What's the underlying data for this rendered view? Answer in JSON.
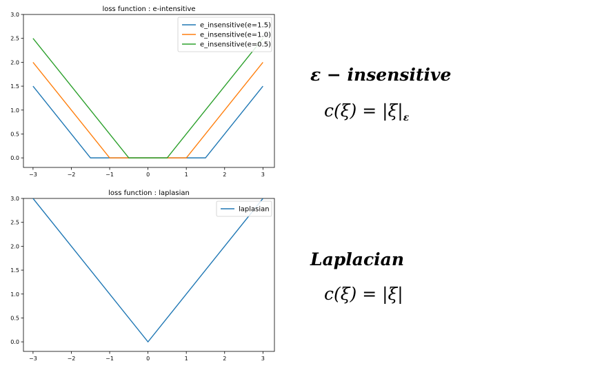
{
  "colors": {
    "c0": "#1f77b4",
    "c1": "#ff7f0e",
    "c2": "#2ca02c"
  },
  "chart_data": [
    {
      "type": "line",
      "title": "loss function : e-intensitive",
      "xlim": [
        -3.25,
        3.3
      ],
      "ylim": [
        -0.2,
        3.0
      ],
      "xticks": [
        "−3",
        "−2",
        "−1",
        "0",
        "1",
        "2",
        "3"
      ],
      "yticks": [
        "0.0",
        "0.5",
        "1.0",
        "1.5",
        "2.0",
        "2.5",
        "3.0"
      ],
      "legend": "top-right",
      "series": [
        {
          "name": "e_insensitive(e=1.5)",
          "color": "c0",
          "x": [
            -3,
            -1.5,
            1.5,
            3
          ],
          "y": [
            1.5,
            0,
            0,
            1.5
          ]
        },
        {
          "name": "e_insensitive(e=1.0)",
          "color": "c1",
          "x": [
            -3,
            -1.0,
            1.0,
            3
          ],
          "y": [
            2.0,
            0,
            0,
            2.0
          ]
        },
        {
          "name": "e_insensitive(e=0.5)",
          "color": "c2",
          "x": [
            -3,
            -0.5,
            0.5,
            3
          ],
          "y": [
            2.5,
            0,
            0,
            2.5
          ]
        }
      ]
    },
    {
      "type": "line",
      "title": "loss function : laplasian",
      "xlim": [
        -3.25,
        3.3
      ],
      "ylim": [
        -0.2,
        3.0
      ],
      "xticks": [
        "−3",
        "−2",
        "−1",
        "0",
        "1",
        "2",
        "3"
      ],
      "yticks": [
        "0.0",
        "0.5",
        "1.0",
        "1.5",
        "2.0",
        "2.5",
        "3.0"
      ],
      "legend": "top-right",
      "series": [
        {
          "name": "laplasian",
          "color": "c0",
          "x": [
            -3,
            0,
            3
          ],
          "y": [
            3,
            0,
            3
          ]
        }
      ]
    }
  ],
  "formulas": {
    "eps_title": "ε − insensitive",
    "eps_formula_main": "c(ξ) = |ξ|",
    "eps_formula_sub": "ε",
    "lap_title": "Laplacian",
    "lap_formula": "c(ξ) = |ξ|"
  }
}
